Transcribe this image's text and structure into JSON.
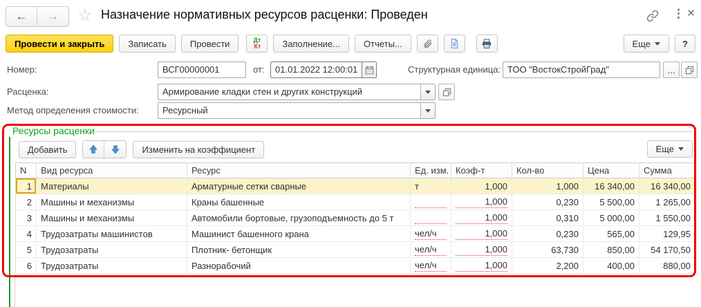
{
  "window": {
    "title": "Назначение нормативных ресурсов расценки: Проведен",
    "icons": {
      "back": "←",
      "forward": "→",
      "favorite": "☆",
      "menu": "⋮",
      "close": "×"
    }
  },
  "toolbar": {
    "post_and_close": "Провести и закрыть",
    "save": "Записать",
    "post": "Провести",
    "dtkt": {
      "dt": "Дт",
      "kt": "Кт"
    },
    "fill": "Заполнение...",
    "reports": "Отчеты...",
    "more": "Еще",
    "help": "?"
  },
  "form": {
    "number": {
      "label": "Номер:",
      "value": "ВСГ00000001"
    },
    "date": {
      "label": "от:",
      "value": "01.01.2022 12:00:01"
    },
    "unit": {
      "label": "Структурная единица:",
      "value": "ТОО \"ВостокСтройГрад\"",
      "more": "..."
    },
    "rate": {
      "label": "Расценка:",
      "value": "Армирование кладки стен и других конструкций"
    },
    "method": {
      "label": "Метод определения стоимости:",
      "value": "Ресурсный"
    }
  },
  "resources": {
    "group_title": "Ресурсы расценки",
    "toolbar": {
      "add": "Добавить",
      "change_coef": "Изменить на коэффициент",
      "more": "Еще"
    },
    "table": {
      "columns": [
        "N",
        "Вид ресурса",
        "Ресурс",
        "Ед. изм.",
        "Коэф-т",
        "Кол-во",
        "Цена",
        "Сумма"
      ],
      "rows": [
        {
          "n": "1",
          "type": "Материалы",
          "resource": "Арматурные сетки сварные",
          "unit": "т",
          "coef": "1,000",
          "qty": "1,000",
          "price": "16 340,00",
          "sum": "16 340,00",
          "selected": true,
          "unit_dotted": false,
          "coef_dotted": false
        },
        {
          "n": "2",
          "type": "Машины и механизмы",
          "resource": "Краны башенные",
          "unit": "",
          "coef": "1,000",
          "qty": "0,230",
          "price": "5 500,00",
          "sum": "1 265,00",
          "unit_dotted": true,
          "coef_dotted": true
        },
        {
          "n": "3",
          "type": "Машины и механизмы",
          "resource": "Автомобили бортовые, грузоподъемность до 5 т",
          "unit": "",
          "coef": "1,000",
          "qty": "0,310",
          "price": "5 000,00",
          "sum": "1 550,00",
          "unit_dotted": true,
          "coef_dotted": true
        },
        {
          "n": "4",
          "type": "Трудозатраты машинистов",
          "resource": "Машинист башенного крана",
          "unit": "чел/ч",
          "coef": "1,000",
          "qty": "0,230",
          "price": "565,00",
          "sum": "129,95",
          "unit_dotted": true,
          "coef_dotted": true
        },
        {
          "n": "5",
          "type": "Трудозатраты",
          "resource": "Плотник- бетонщик",
          "unit": "чел/ч",
          "coef": "1,000",
          "qty": "63,730",
          "price": "850,00",
          "sum": "54 170,50",
          "unit_dotted": true,
          "coef_dotted": true
        },
        {
          "n": "6",
          "type": "Трудозатраты",
          "resource": "Разнорабочий",
          "unit": "чел/ч",
          "coef": "1,000",
          "qty": "2,200",
          "price": "400,00",
          "sum": "880,00",
          "unit_dotted": true,
          "coef_dotted": true
        }
      ]
    }
  },
  "colors": {
    "accent_yellow": "#ffd012",
    "group_green": "#0ba322",
    "annotation_red": "#f20000",
    "selection_yellow": "#fdf3c8",
    "required_dotted_red": "#e03c3c",
    "arrow_blue": "#4796e0"
  }
}
